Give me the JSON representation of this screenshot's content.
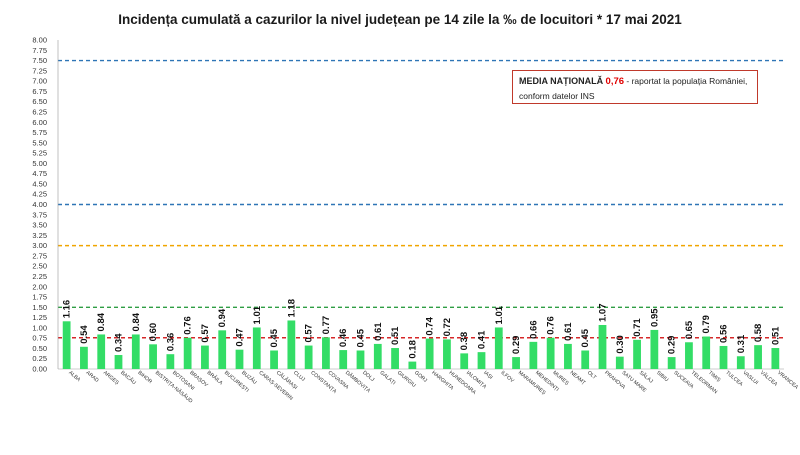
{
  "chart_data": {
    "type": "bar",
    "title": "Incidența cumulată a cazurilor la nivel județean pe 14 zile la ‰ de locuitori *  17 mai 2021",
    "xlabel": "",
    "ylabel": "",
    "ylim": [
      0,
      8
    ],
    "yticks": [
      "0.00",
      "0.25",
      "0.50",
      "0.75",
      "1.00",
      "1.25",
      "1.50",
      "1.75",
      "2.00",
      "2.25",
      "2.50",
      "2.75",
      "3.00",
      "3.25",
      "3.50",
      "3.75",
      "4.00",
      "4.25",
      "4.50",
      "4.75",
      "5.00",
      "5.25",
      "5.50",
      "5.75",
      "6.00",
      "6.25",
      "6.50",
      "6.75",
      "7.00",
      "7.25",
      "7.50",
      "7.75",
      "8.00"
    ],
    "categories": [
      "ALBA",
      "ARAD",
      "ARGEȘ",
      "BACĂU",
      "BIHOR",
      "BISTRIȚA-NĂSĂUD",
      "BOTOȘANI",
      "BRAȘOV",
      "BRĂILA",
      "BUCUREȘTI",
      "BUZĂU",
      "CARAȘ-SEVERIN",
      "CĂLĂRAȘI",
      "CLUJ",
      "CONSTANȚA",
      "COVASNA",
      "DÂMBOVIȚA",
      "DOLJ",
      "GALAȚI",
      "GIURGIU",
      "GORJ",
      "HARGHITA",
      "HUNEDOARA",
      "IALOMIȚA",
      "IAȘI",
      "ILFOV",
      "MARAMUREȘ",
      "MEHEDINȚI",
      "MUREȘ",
      "NEAMȚ",
      "OLT",
      "PRAHOVA",
      "SATU MARE",
      "SĂLAJ",
      "SIBIU",
      "SUCEAVA",
      "TELEORMAN",
      "TIMIȘ",
      "TULCEA",
      "VASLUI",
      "VÂLCEA",
      "VRANCEA"
    ],
    "values": [
      1.16,
      0.54,
      0.84,
      0.34,
      0.84,
      0.6,
      0.36,
      0.76,
      0.57,
      0.94,
      0.47,
      1.01,
      0.45,
      1.18,
      0.57,
      0.77,
      0.46,
      0.45,
      0.61,
      0.51,
      0.18,
      0.74,
      0.72,
      0.38,
      0.41,
      1.01,
      0.29,
      0.66,
      0.76,
      0.61,
      0.45,
      1.07,
      0.3,
      0.71,
      0.95,
      0.29,
      0.65,
      0.79,
      0.56,
      0.31,
      0.58,
      0.51
    ],
    "data_labels": [
      "1.16",
      "0.54",
      "0.84",
      "0.34",
      "0.84",
      "0.60",
      "0.36",
      "0.76",
      "0.57",
      "0.94",
      "0.47",
      "1.01",
      "0.45",
      "1.18",
      "0.57",
      "0.77",
      "0.46",
      "0.45",
      "0.61",
      "0.51",
      "0.18",
      "0.74",
      "0.72",
      "0.38",
      "0.41",
      "1.01",
      "0.29",
      "0.66",
      "0.76",
      "0.61",
      "0.45",
      "1.07",
      "0.30",
      "0.71",
      "0.95",
      "0.29",
      "0.65",
      "0.79",
      "0.56",
      "0.31",
      "0.58",
      "0.51"
    ],
    "bar_color": "#33dd66",
    "reference_lines": [
      {
        "value": 7.5,
        "color": "#2e75b6"
      },
      {
        "value": 4.0,
        "color": "#2e75b6"
      },
      {
        "value": 3.0,
        "color": "#f0a500"
      },
      {
        "value": 1.5,
        "color": "#2f9e44"
      },
      {
        "value": 0.76,
        "color": "#d62728"
      }
    ],
    "grid": false,
    "legend": {
      "position": "top-right",
      "label": "MEDIA NAȚIONALĂ",
      "value": "0,76",
      "text": " - raportat la populația României, conform datelor INS",
      "border_color": "#c0392b",
      "value_color": "#e00000"
    }
  }
}
